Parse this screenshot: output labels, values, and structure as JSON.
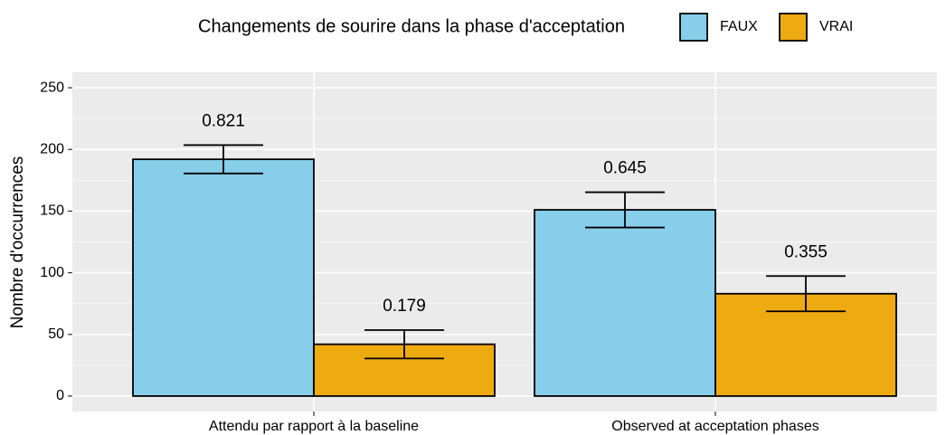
{
  "chart_data": {
    "type": "bar",
    "legend_title": "Changements de sourire dans la phase d'acceptation",
    "ylabel": "Nombre d'occurrences",
    "categories": [
      "Attendu par rapport à la baseline",
      "Observed at acceptation phases"
    ],
    "series": [
      {
        "name": "FAUX",
        "color": "#87ceeb",
        "values": [
          192,
          151
        ],
        "errors": [
          11.5,
          14.3
        ],
        "proportions": [
          0.821,
          0.645
        ]
      },
      {
        "name": "VRAI",
        "color": "#eeaa11",
        "values": [
          42,
          83
        ],
        "errors": [
          11.5,
          14.3
        ],
        "proportions": [
          0.179,
          0.355
        ]
      }
    ],
    "ylim": [
      -12.5,
      262.5
    ],
    "yticks": [
      0,
      50,
      100,
      150,
      200,
      250
    ],
    "grid": true,
    "legend": "top"
  }
}
